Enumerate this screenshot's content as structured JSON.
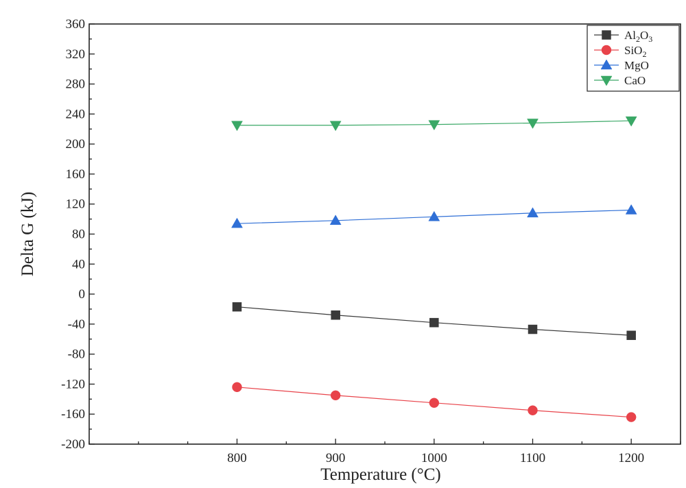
{
  "chart_data": {
    "type": "line",
    "xlabel": "Temperature (°C)",
    "ylabel": "Delta G (kJ)",
    "x": [
      800,
      900,
      1000,
      1100,
      1200
    ],
    "xlim": [
      650,
      1250
    ],
    "ylim": [
      -200,
      360
    ],
    "x_ticks": [
      800,
      900,
      1000,
      1100,
      1200
    ],
    "y_ticks": [
      -200,
      -160,
      -120,
      -80,
      -40,
      0,
      40,
      80,
      120,
      160,
      200,
      240,
      280,
      320,
      360
    ],
    "grid": false,
    "legend_position": "top-right",
    "series": [
      {
        "name": "Al",
        "name_sub1": "2",
        "name_mid": "O",
        "name_sub2": "3",
        "marker": "square",
        "color": "#3a3a3a",
        "values": [
          -17,
          -28,
          -38,
          -47,
          -55
        ]
      },
      {
        "name": "SiO",
        "name_sub1": "2",
        "name_mid": "",
        "name_sub2": "",
        "marker": "circle",
        "color": "#e8434a",
        "values": [
          -124,
          -135,
          -145,
          -155,
          -164
        ]
      },
      {
        "name": "MgO",
        "name_sub1": "",
        "name_mid": "",
        "name_sub2": "",
        "marker": "triangle-up",
        "color": "#2f6fd6",
        "values": [
          94,
          98,
          103,
          108,
          112
        ]
      },
      {
        "name": "CaO",
        "name_sub1": "",
        "name_mid": "",
        "name_sub2": "",
        "marker": "triangle-down",
        "color": "#3aa866",
        "values": [
          225,
          225,
          226,
          228,
          231
        ]
      }
    ]
  }
}
